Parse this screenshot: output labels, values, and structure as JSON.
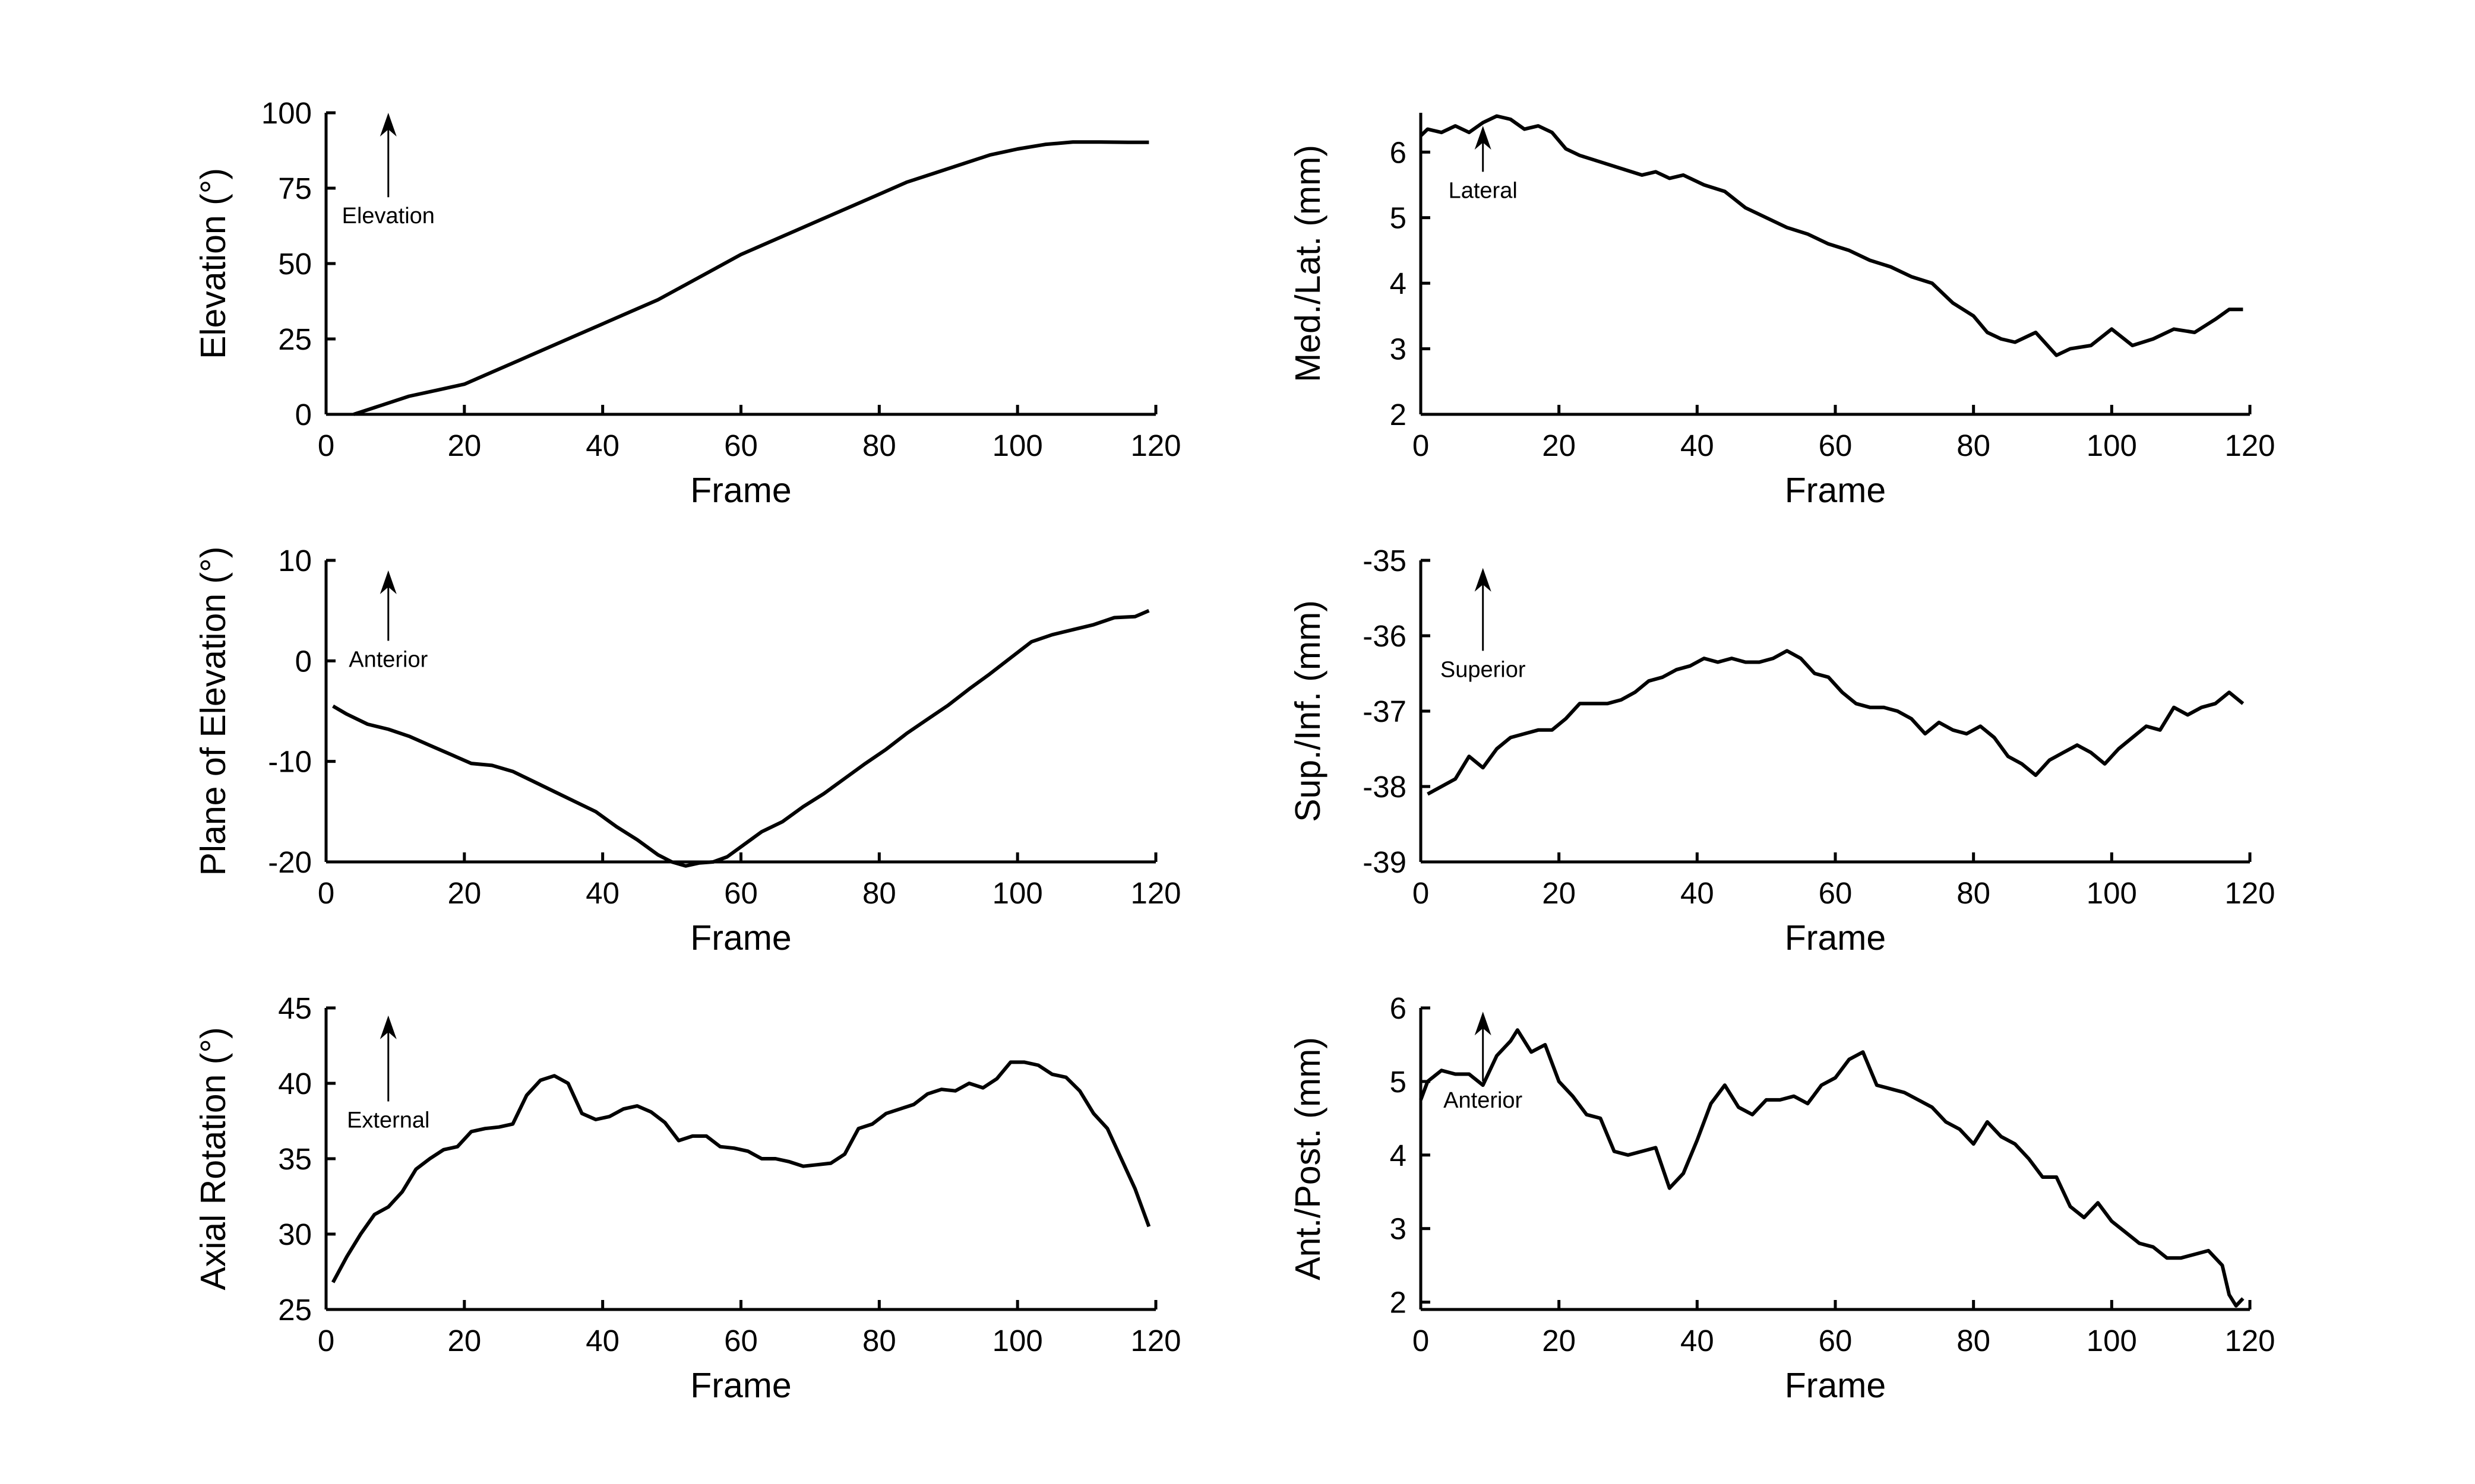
{
  "chart_data": [
    {
      "type": "line",
      "xlabel": "Frame",
      "ylabel": "Elevation (°)",
      "xlim": [
        0,
        120
      ],
      "ylim": [
        0,
        100
      ],
      "xticks": [
        0,
        20,
        40,
        60,
        80,
        100,
        120
      ],
      "yticks": [
        0,
        25,
        50,
        75,
        100
      ],
      "grid": false,
      "annotation": {
        "label": "Elevation",
        "arrow": "up",
        "x": 9,
        "y_from": 72,
        "y_to": 100
      },
      "series": [
        {
          "x": [
            4,
            8,
            12,
            16,
            20,
            24,
            28,
            32,
            36,
            40,
            44,
            48,
            52,
            56,
            60,
            64,
            68,
            72,
            76,
            80,
            84,
            88,
            92,
            96,
            100,
            104,
            108,
            112,
            116,
            119
          ],
          "y": [
            0,
            3,
            6,
            8,
            10,
            14,
            18,
            22,
            26,
            30,
            34,
            38,
            43,
            48,
            53,
            57,
            61,
            65,
            69,
            73,
            77,
            80,
            83,
            86,
            88,
            89.5,
            90.3,
            90.3,
            90.2,
            90.2
          ]
        }
      ]
    },
    {
      "type": "line",
      "xlabel": "Frame",
      "ylabel": "Med./Lat. (mm)",
      "xlim": [
        0,
        120
      ],
      "ylim": [
        2,
        6.6
      ],
      "xticks": [
        0,
        20,
        40,
        60,
        80,
        100,
        120
      ],
      "yticks": [
        2,
        3,
        4,
        5,
        6
      ],
      "grid": false,
      "annotation": {
        "label": "Lateral",
        "arrow": "up",
        "x": 9,
        "y_from": 5.7,
        "y_to": 6.4
      },
      "series": [
        {
          "x": [
            0,
            1,
            3,
            5,
            7,
            9,
            11,
            13,
            15,
            17,
            19,
            21,
            23,
            26,
            29,
            32,
            34,
            36,
            38,
            41,
            44,
            47,
            50,
            53,
            56,
            59,
            62,
            65,
            68,
            71,
            74,
            77,
            80,
            82,
            84,
            86,
            89,
            92,
            94,
            97,
            100,
            103,
            106,
            109,
            112,
            115,
            117,
            119
          ],
          "y": [
            6.25,
            6.35,
            6.3,
            6.4,
            6.3,
            6.45,
            6.55,
            6.5,
            6.35,
            6.4,
            6.3,
            6.05,
            5.95,
            5.85,
            5.75,
            5.65,
            5.7,
            5.6,
            5.65,
            5.5,
            5.4,
            5.15,
            5.0,
            4.85,
            4.75,
            4.6,
            4.5,
            4.35,
            4.25,
            4.1,
            4.0,
            3.7,
            3.5,
            3.25,
            3.15,
            3.1,
            3.25,
            2.9,
            3.0,
            3.05,
            3.3,
            3.05,
            3.15,
            3.3,
            3.25,
            3.45,
            3.6,
            3.6
          ]
        }
      ]
    },
    {
      "type": "line",
      "xlabel": "Frame",
      "ylabel": "Plane of Elevation (°)",
      "xlim": [
        0,
        120
      ],
      "ylim": [
        -20,
        10
      ],
      "xticks": [
        0,
        20,
        40,
        60,
        80,
        100,
        120
      ],
      "yticks": [
        -20,
        -10,
        0,
        10
      ],
      "grid": false,
      "annotation": {
        "label": "Anterior",
        "arrow": "up",
        "x": 9,
        "y_from": 2,
        "y_to": 9
      },
      "series": [
        {
          "x": [
            1,
            3,
            6,
            9,
            12,
            15,
            18,
            21,
            24,
            27,
            30,
            33,
            36,
            39,
            42,
            45,
            48,
            50,
            52,
            54,
            56,
            58,
            60,
            63,
            66,
            69,
            72,
            75,
            78,
            81,
            84,
            87,
            90,
            93,
            96,
            99,
            102,
            105,
            108,
            111,
            114,
            117,
            119
          ],
          "y": [
            -4.5,
            -5.3,
            -6.3,
            -6.8,
            -7.5,
            -8.4,
            -9.3,
            -10.2,
            -10.4,
            -11.0,
            -12.0,
            -13.0,
            -14.0,
            -15.0,
            -16.5,
            -17.8,
            -19.3,
            -20.0,
            -20.4,
            -20.1,
            -20.0,
            -19.5,
            -18.5,
            -17.0,
            -16.0,
            -14.5,
            -13.2,
            -11.7,
            -10.2,
            -8.8,
            -7.2,
            -5.8,
            -4.4,
            -2.8,
            -1.3,
            0.3,
            1.9,
            2.6,
            3.1,
            3.6,
            4.3,
            4.4,
            5.0
          ]
        }
      ]
    },
    {
      "type": "line",
      "xlabel": "Frame",
      "ylabel": "Sup./Inf. (mm)",
      "xlim": [
        0,
        120
      ],
      "ylim": [
        -39,
        -35
      ],
      "xticks": [
        0,
        20,
        40,
        60,
        80,
        100,
        120
      ],
      "yticks": [
        -39,
        -38,
        -37,
        -36,
        -35
      ],
      "grid": false,
      "annotation": {
        "label": "Superior",
        "arrow": "up",
        "x": 9,
        "y_from": -36.2,
        "y_to": -35.1
      },
      "series": [
        {
          "x": [
            1,
            3,
            5,
            7,
            9,
            11,
            13,
            15,
            17,
            19,
            21,
            23,
            25,
            27,
            29,
            31,
            33,
            35,
            37,
            39,
            41,
            43,
            45,
            47,
            49,
            51,
            53,
            55,
            57,
            59,
            61,
            63,
            65,
            67,
            69,
            71,
            73,
            75,
            77,
            79,
            81,
            83,
            85,
            87,
            89,
            91,
            93,
            95,
            97,
            99,
            101,
            103,
            105,
            107,
            109,
            111,
            113,
            115,
            117,
            119
          ],
          "y": [
            -38.1,
            -38.0,
            -37.9,
            -37.6,
            -37.75,
            -37.5,
            -37.35,
            -37.3,
            -37.25,
            -37.25,
            -37.1,
            -36.9,
            -36.9,
            -36.9,
            -36.85,
            -36.75,
            -36.6,
            -36.55,
            -36.45,
            -36.4,
            -36.3,
            -36.35,
            -36.3,
            -36.35,
            -36.35,
            -36.3,
            -36.2,
            -36.3,
            -36.5,
            -36.55,
            -36.75,
            -36.9,
            -36.95,
            -36.95,
            -37.0,
            -37.1,
            -37.3,
            -37.15,
            -37.25,
            -37.3,
            -37.2,
            -37.35,
            -37.6,
            -37.7,
            -37.85,
            -37.65,
            -37.55,
            -37.45,
            -37.55,
            -37.7,
            -37.5,
            -37.35,
            -37.2,
            -37.25,
            -36.95,
            -37.05,
            -36.95,
            -36.9,
            -36.75,
            -36.9
          ]
        }
      ]
    },
    {
      "type": "line",
      "xlabel": "Frame",
      "ylabel": "Axial Rotation (°)",
      "xlim": [
        0,
        120
      ],
      "ylim": [
        25,
        45
      ],
      "xticks": [
        0,
        20,
        40,
        60,
        80,
        100,
        120
      ],
      "yticks": [
        25,
        30,
        35,
        40,
        45
      ],
      "grid": false,
      "annotation": {
        "label": "External",
        "arrow": "up",
        "x": 9,
        "y_from": 38.8,
        "y_to": 44.5
      },
      "series": [
        {
          "x": [
            1,
            3,
            5,
            7,
            9,
            11,
            13,
            15,
            17,
            19,
            21,
            23,
            25,
            27,
            29,
            31,
            33,
            35,
            37,
            39,
            41,
            43,
            45,
            47,
            49,
            51,
            53,
            55,
            57,
            59,
            61,
            63,
            65,
            67,
            69,
            71,
            73,
            75,
            77,
            79,
            81,
            83,
            85,
            87,
            89,
            91,
            93,
            95,
            97,
            99,
            101,
            103,
            105,
            107,
            109,
            111,
            113,
            115,
            117,
            119
          ],
          "y": [
            26.8,
            28.5,
            30.0,
            31.3,
            31.8,
            32.8,
            34.3,
            35.0,
            35.6,
            35.8,
            36.8,
            37.0,
            37.1,
            37.3,
            39.2,
            40.2,
            40.5,
            40.0,
            38.0,
            37.6,
            37.8,
            38.3,
            38.5,
            38.1,
            37.4,
            36.2,
            36.5,
            36.5,
            35.8,
            35.7,
            35.5,
            35.0,
            35.0,
            34.8,
            34.5,
            34.6,
            34.7,
            35.3,
            37.0,
            37.3,
            38.0,
            38.3,
            38.6,
            39.3,
            39.6,
            39.5,
            40.0,
            39.7,
            40.3,
            41.4,
            41.4,
            41.2,
            40.6,
            40.4,
            39.5,
            38.0,
            37.0,
            35.0,
            33.0,
            30.5
          ]
        }
      ]
    },
    {
      "type": "line",
      "xlabel": "Frame",
      "ylabel": "Ant./Post. (mm)",
      "xlim": [
        0,
        120
      ],
      "ylim": [
        1.9,
        6
      ],
      "xticks": [
        0,
        20,
        40,
        60,
        80,
        100,
        120
      ],
      "yticks": [
        2,
        3,
        4,
        5,
        6
      ],
      "grid": false,
      "annotation": {
        "label": "Anterior",
        "arrow": "up",
        "x": 9,
        "y_from": 5.0,
        "y_to": 5.95
      },
      "series": [
        {
          "x": [
            0,
            1,
            3,
            5,
            7,
            9,
            11,
            13,
            14,
            16,
            18,
            20,
            22,
            24,
            26,
            28,
            30,
            32,
            34,
            36,
            38,
            40,
            42,
            44,
            46,
            48,
            50,
            52,
            54,
            56,
            58,
            60,
            62,
            64,
            66,
            68,
            70,
            72,
            74,
            76,
            78,
            80,
            82,
            84,
            86,
            88,
            90,
            92,
            94,
            96,
            98,
            100,
            102,
            104,
            106,
            108,
            110,
            112,
            114,
            116,
            117,
            118,
            119
          ],
          "y": [
            4.75,
            5.0,
            5.15,
            5.1,
            5.1,
            4.95,
            5.35,
            5.55,
            5.7,
            5.4,
            5.5,
            5.0,
            4.8,
            4.55,
            4.5,
            4.05,
            4.0,
            4.05,
            4.1,
            3.55,
            3.75,
            4.2,
            4.7,
            4.95,
            4.65,
            4.55,
            4.75,
            4.75,
            4.8,
            4.7,
            4.95,
            5.05,
            5.3,
            5.4,
            4.95,
            4.9,
            4.85,
            4.75,
            4.65,
            4.45,
            4.35,
            4.15,
            4.45,
            4.25,
            4.15,
            3.95,
            3.7,
            3.7,
            3.3,
            3.15,
            3.35,
            3.1,
            2.95,
            2.8,
            2.75,
            2.6,
            2.6,
            2.65,
            2.7,
            2.5,
            2.1,
            1.95,
            2.05
          ]
        }
      ]
    }
  ]
}
